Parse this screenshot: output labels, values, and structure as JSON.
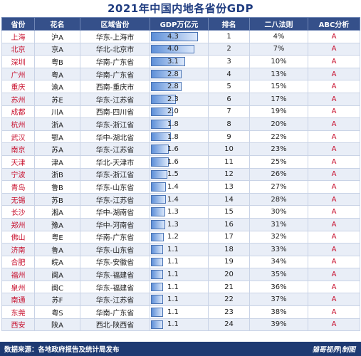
{
  "title": "2021年中国内地各省份GDP",
  "headers": [
    "省份",
    "花名",
    "区域省份",
    "GDP万亿元",
    "排名",
    "二八法则",
    "ABC分析"
  ],
  "rows": [
    {
      "city": "上海",
      "plate": "沪A",
      "region": "华东-上海市",
      "gdp": "4.3",
      "rank": "1",
      "pct": "4%",
      "abc": "A"
    },
    {
      "city": "北京",
      "plate": "京A",
      "region": "华北-北京市",
      "gdp": "4.0",
      "rank": "2",
      "pct": "7%",
      "abc": "A"
    },
    {
      "city": "深圳",
      "plate": "粤B",
      "region": "华南-广东省",
      "gdp": "3.1",
      "rank": "3",
      "pct": "10%",
      "abc": "A"
    },
    {
      "city": "广州",
      "plate": "粤A",
      "region": "华南-广东省",
      "gdp": "2.8",
      "rank": "4",
      "pct": "13%",
      "abc": "A"
    },
    {
      "city": "重庆",
      "plate": "渝A",
      "region": "西南-重庆市",
      "gdp": "2.8",
      "rank": "5",
      "pct": "15%",
      "abc": "A"
    },
    {
      "city": "苏州",
      "plate": "苏E",
      "region": "华东-江苏省",
      "gdp": "2.3",
      "rank": "6",
      "pct": "17%",
      "abc": "A"
    },
    {
      "city": "成都",
      "plate": "川A",
      "region": "西南-四川省",
      "gdp": "2.0",
      "rank": "7",
      "pct": "19%",
      "abc": "A"
    },
    {
      "city": "杭州",
      "plate": "浙A",
      "region": "华东-浙江省",
      "gdp": "1.8",
      "rank": "8",
      "pct": "20%",
      "abc": "A"
    },
    {
      "city": "武汉",
      "plate": "鄂A",
      "region": "华中-湖北省",
      "gdp": "1.8",
      "rank": "9",
      "pct": "22%",
      "abc": "A"
    },
    {
      "city": "南京",
      "plate": "苏A",
      "region": "华东-江苏省",
      "gdp": "1.6",
      "rank": "10",
      "pct": "23%",
      "abc": "A"
    },
    {
      "city": "天津",
      "plate": "津A",
      "region": "华北-天津市",
      "gdp": "1.6",
      "rank": "11",
      "pct": "25%",
      "abc": "A"
    },
    {
      "city": "宁波",
      "plate": "浙B",
      "region": "华东-浙江省",
      "gdp": "1.5",
      "rank": "12",
      "pct": "26%",
      "abc": "A"
    },
    {
      "city": "青岛",
      "plate": "鲁B",
      "region": "华东-山东省",
      "gdp": "1.4",
      "rank": "13",
      "pct": "27%",
      "abc": "A"
    },
    {
      "city": "无锡",
      "plate": "苏B",
      "region": "华东-江苏省",
      "gdp": "1.4",
      "rank": "14",
      "pct": "28%",
      "abc": "A"
    },
    {
      "city": "长沙",
      "plate": "湘A",
      "region": "华中-湖南省",
      "gdp": "1.3",
      "rank": "15",
      "pct": "30%",
      "abc": "A"
    },
    {
      "city": "郑州",
      "plate": "豫A",
      "region": "华中-河南省",
      "gdp": "1.3",
      "rank": "16",
      "pct": "31%",
      "abc": "A"
    },
    {
      "city": "佛山",
      "plate": "粤E",
      "region": "华南-广东省",
      "gdp": "1.2",
      "rank": "17",
      "pct": "32%",
      "abc": "A"
    },
    {
      "city": "济南",
      "plate": "鲁A",
      "region": "华东-山东省",
      "gdp": "1.1",
      "rank": "18",
      "pct": "33%",
      "abc": "A"
    },
    {
      "city": "合肥",
      "plate": "皖A",
      "region": "华东-安徽省",
      "gdp": "1.1",
      "rank": "19",
      "pct": "34%",
      "abc": "A"
    },
    {
      "city": "福州",
      "plate": "闽A",
      "region": "华东-福建省",
      "gdp": "1.1",
      "rank": "20",
      "pct": "35%",
      "abc": "A"
    },
    {
      "city": "泉州",
      "plate": "闽C",
      "region": "华东-福建省",
      "gdp": "1.1",
      "rank": "21",
      "pct": "36%",
      "abc": "A"
    },
    {
      "city": "南通",
      "plate": "苏F",
      "region": "华东-江苏省",
      "gdp": "1.1",
      "rank": "22",
      "pct": "37%",
      "abc": "A"
    },
    {
      "city": "东莞",
      "plate": "粤S",
      "region": "华南-广东省",
      "gdp": "1.1",
      "rank": "23",
      "pct": "38%",
      "abc": "A"
    },
    {
      "city": "西安",
      "plate": "陕A",
      "region": "西北-陕西省",
      "gdp": "1.1",
      "rank": "24",
      "pct": "39%",
      "abc": "A"
    }
  ],
  "gdp_bar_max": 4.3,
  "footer": {
    "source": "数据来源：各地政府报告及统计局发布",
    "credit": "猫哥视界|制图"
  },
  "colors": {
    "header_bg": "#35508a",
    "title": "#1f3c80",
    "city_text": "#c8102e",
    "bar": "#5d8fd8",
    "footer_bg": "#1e3a72"
  }
}
